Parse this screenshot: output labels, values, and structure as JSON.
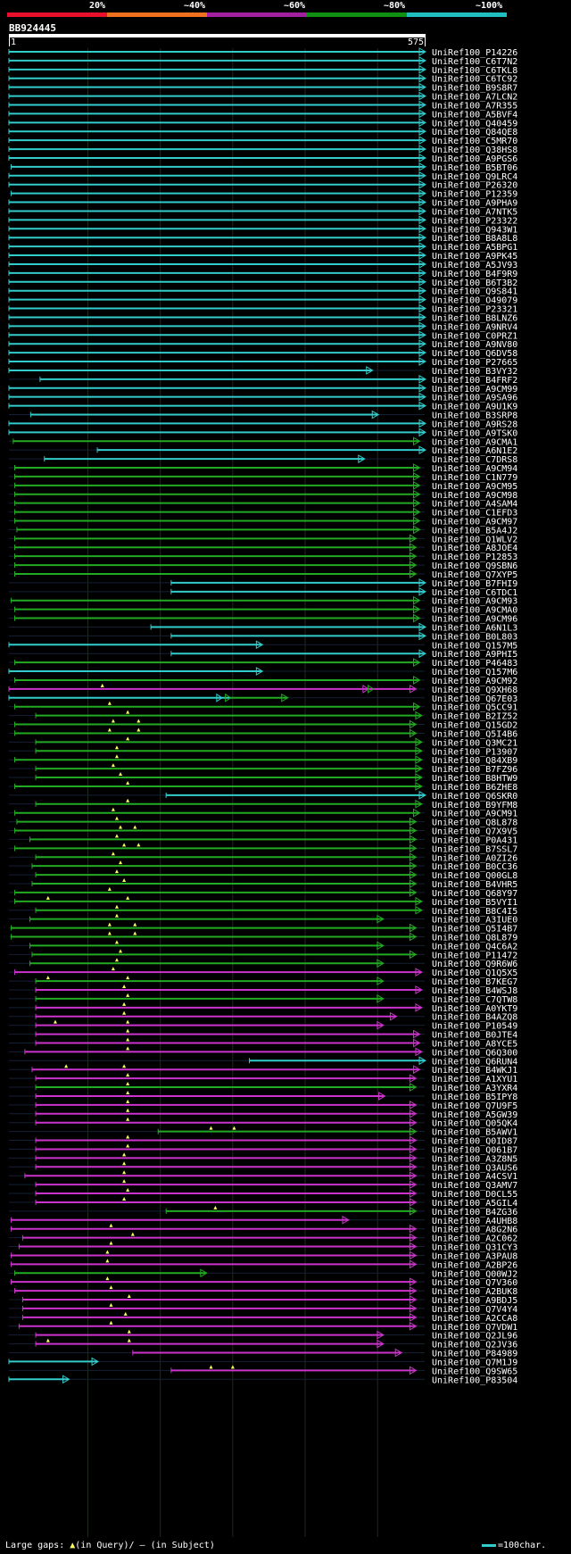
{
  "legend": {
    "labels": [
      "20%",
      "~40%",
      "~60%",
      "~80%",
      "~100%"
    ],
    "colors": [
      "#e8102a",
      "#f07020",
      "#a020a0",
      "#109010",
      "#20c0c0"
    ]
  },
  "query": {
    "id": "BB924445",
    "start": "1",
    "end": "575"
  },
  "colors": {
    "cyan": "#33cccc",
    "green": "#22aa22",
    "magenta": "#cc33cc"
  },
  "gap_marker_color": "#ffff66",
  "hits": [
    {
      "id": "UniRef100_P14226",
      "s": 1,
      "e": 575,
      "c": "cyan"
    },
    {
      "id": "UniRef100_C6T7N2",
      "s": 1,
      "e": 575,
      "c": "cyan"
    },
    {
      "id": "UniRef100_C6TKL8",
      "s": 1,
      "e": 575,
      "c": "cyan"
    },
    {
      "id": "UniRef100_C6TC92",
      "s": 1,
      "e": 575,
      "c": "cyan"
    },
    {
      "id": "UniRef100_B9S8R7",
      "s": 1,
      "e": 575,
      "c": "cyan"
    },
    {
      "id": "UniRef100_A7LCN2",
      "s": 1,
      "e": 575,
      "c": "cyan"
    },
    {
      "id": "UniRef100_A7R355",
      "s": 1,
      "e": 575,
      "c": "cyan"
    },
    {
      "id": "UniRef100_A5BVF4",
      "s": 1,
      "e": 575,
      "c": "cyan"
    },
    {
      "id": "UniRef100_Q40459",
      "s": 1,
      "e": 575,
      "c": "cyan"
    },
    {
      "id": "UniRef100_Q84QE8",
      "s": 1,
      "e": 575,
      "c": "cyan"
    },
    {
      "id": "UniRef100_C5MR70",
      "s": 1,
      "e": 575,
      "c": "cyan"
    },
    {
      "id": "UniRef100_Q38HS8",
      "s": 1,
      "e": 575,
      "c": "cyan"
    },
    {
      "id": "UniRef100_A9PGS6",
      "s": 1,
      "e": 575,
      "c": "cyan"
    },
    {
      "id": "UniRef100_B5BT06",
      "s": 4,
      "e": 575,
      "c": "cyan"
    },
    {
      "id": "UniRef100_Q9LRC4",
      "s": 1,
      "e": 575,
      "c": "cyan"
    },
    {
      "id": "UniRef100_P26320",
      "s": 1,
      "e": 575,
      "c": "cyan"
    },
    {
      "id": "UniRef100_P12359",
      "s": 4,
      "e": 575,
      "c": "cyan"
    },
    {
      "id": "UniRef100_A9PHA9",
      "s": 1,
      "e": 575,
      "c": "cyan"
    },
    {
      "id": "UniRef100_A7NTK5",
      "s": 1,
      "e": 575,
      "c": "cyan"
    },
    {
      "id": "UniRef100_P23322",
      "s": 1,
      "e": 575,
      "c": "cyan"
    },
    {
      "id": "UniRef100_Q943W1",
      "s": 1,
      "e": 575,
      "c": "cyan"
    },
    {
      "id": "UniRef100_B8A8L8",
      "s": 1,
      "e": 575,
      "c": "cyan"
    },
    {
      "id": "UniRef100_A5BPG1",
      "s": 1,
      "e": 575,
      "c": "cyan"
    },
    {
      "id": "UniRef100_A9PK45",
      "s": 1,
      "e": 575,
      "c": "cyan"
    },
    {
      "id": "UniRef100_A5JV93",
      "s": 1,
      "e": 575,
      "c": "cyan"
    },
    {
      "id": "UniRef100_B4F9R9",
      "s": 1,
      "e": 575,
      "c": "cyan"
    },
    {
      "id": "UniRef100_B6T3B2",
      "s": 1,
      "e": 575,
      "c": "cyan"
    },
    {
      "id": "UniRef100_Q9S841",
      "s": 1,
      "e": 575,
      "c": "cyan"
    },
    {
      "id": "UniRef100_O49079",
      "s": 1,
      "e": 575,
      "c": "cyan"
    },
    {
      "id": "UniRef100_P23321",
      "s": 1,
      "e": 575,
      "c": "cyan"
    },
    {
      "id": "UniRef100_B8LNZ6",
      "s": 1,
      "e": 575,
      "c": "cyan"
    },
    {
      "id": "UniRef100_A9NRV4",
      "s": 1,
      "e": 575,
      "c": "cyan"
    },
    {
      "id": "UniRef100_C0PRZ1",
      "s": 1,
      "e": 575,
      "c": "cyan"
    },
    {
      "id": "UniRef100_A9NV80",
      "s": 1,
      "e": 575,
      "c": "cyan"
    },
    {
      "id": "UniRef100_Q6DV58",
      "s": 1,
      "e": 575,
      "c": "cyan"
    },
    {
      "id": "UniRef100_P27665",
      "s": 1,
      "e": 575,
      "c": "cyan"
    },
    {
      "id": "UniRef100_B3VY32",
      "s": 1,
      "e": 502,
      "c": "cyan"
    },
    {
      "id": "UniRef100_B4FRF2",
      "s": 44,
      "e": 575,
      "c": "cyan"
    },
    {
      "id": "UniRef100_A9CM99",
      "s": 1,
      "e": 575,
      "c": "cyan"
    },
    {
      "id": "UniRef100_A9SA96",
      "s": 1,
      "e": 575,
      "c": "cyan"
    },
    {
      "id": "UniRef100_A9U1K9",
      "s": 1,
      "e": 575,
      "c": "cyan"
    },
    {
      "id": "UniRef100_B3SRP8",
      "s": 31,
      "e": 510,
      "c": "cyan"
    },
    {
      "id": "UniRef100_A9RS28",
      "s": 1,
      "e": 575,
      "c": "cyan"
    },
    {
      "id": "UniRef100_A9TSK0",
      "s": 1,
      "e": 575,
      "c": "cyan"
    },
    {
      "id": "UniRef100_A9CMA1",
      "s": 7,
      "e": 567,
      "c": "green"
    },
    {
      "id": "UniRef100_A6N1E2",
      "s": 123,
      "e": 575,
      "c": "cyan"
    },
    {
      "id": "UniRef100_C7DRS8",
      "s": 50,
      "e": 491,
      "c": "cyan"
    },
    {
      "id": "UniRef100_A9CM94",
      "s": 9,
      "e": 567,
      "c": "green"
    },
    {
      "id": "UniRef100_C1N779",
      "s": 9,
      "e": 567,
      "c": "green"
    },
    {
      "id": "UniRef100_A9CM95",
      "s": 9,
      "e": 567,
      "c": "green"
    },
    {
      "id": "UniRef100_A9CM98",
      "s": 9,
      "e": 567,
      "c": "green"
    },
    {
      "id": "UniRef100_A4SAM4",
      "s": 9,
      "e": 567,
      "c": "green"
    },
    {
      "id": "UniRef100_C1EFD3",
      "s": 9,
      "e": 567,
      "c": "green"
    },
    {
      "id": "UniRef100_A9CM97",
      "s": 9,
      "e": 567,
      "c": "green"
    },
    {
      "id": "UniRef100_B5A4J2",
      "s": 12,
      "e": 567,
      "c": "green"
    },
    {
      "id": "UniRef100_Q1WLV2",
      "s": 9,
      "e": 562,
      "c": "green"
    },
    {
      "id": "UniRef100_A8JOE4",
      "s": 9,
      "e": 562,
      "c": "green"
    },
    {
      "id": "UniRef100_P12853",
      "s": 9,
      "e": 562,
      "c": "green"
    },
    {
      "id": "UniRef100_Q9SBN6",
      "s": 9,
      "e": 562,
      "c": "green"
    },
    {
      "id": "UniRef100_Q7XYP5",
      "s": 9,
      "e": 562,
      "c": "green"
    },
    {
      "id": "UniRef100_B7FHI9",
      "s": 225,
      "e": 575,
      "c": "cyan"
    },
    {
      "id": "UniRef100_C6TDC1",
      "s": 225,
      "e": 575,
      "c": "cyan"
    },
    {
      "id": "UniRef100_A9CM93",
      "s": 4,
      "e": 567,
      "c": "green"
    },
    {
      "id": "UniRef100_A9CMA0",
      "s": 9,
      "e": 567,
      "c": "green"
    },
    {
      "id": "UniRef100_A9CM96",
      "s": 9,
      "e": 567,
      "c": "green"
    },
    {
      "id": "UniRef100_A6N1L3",
      "s": 197,
      "e": 575,
      "c": "cyan"
    },
    {
      "id": "UniRef100_B0L803",
      "s": 225,
      "e": 575,
      "c": "cyan"
    },
    {
      "id": "UniRef100_Q157M5",
      "s": 1,
      "e": 350,
      "c": "cyan"
    },
    {
      "id": "UniRef100_A9PHI5",
      "s": 225,
      "e": 575,
      "c": "cyan"
    },
    {
      "id": "UniRef100_P46483",
      "s": 9,
      "e": 567,
      "c": "green"
    },
    {
      "id": "UniRef100_Q157M6",
      "s": 1,
      "e": 350,
      "c": "cyan"
    },
    {
      "id": "UniRef100_A9CM92",
      "s": 9,
      "e": 567,
      "c": "green"
    },
    {
      "id": "UniRef100_Q9XH68",
      "s": 1,
      "e": 562,
      "c": "magenta",
      "gaps": [
        130
      ],
      "mid": [
        496,
        503
      ]
    },
    {
      "id": "UniRef100_Q67E03",
      "s": 1,
      "e": 385,
      "c": "cyan",
      "mid": [
        294,
        306
      ],
      "green_from": 306
    },
    {
      "id": "UniRef100_Q5CC91",
      "s": 9,
      "e": 567,
      "c": "green",
      "gaps": [
        140
      ]
    },
    {
      "id": "UniRef100_B2IZ52",
      "s": 38,
      "e": 570,
      "c": "green",
      "gaps": [
        165
      ]
    },
    {
      "id": "UniRef100_Q15GD2",
      "s": 9,
      "e": 562,
      "c": "green",
      "gaps": [
        145,
        180
      ]
    },
    {
      "id": "UniRef100_Q5I4B6",
      "s": 9,
      "e": 562,
      "c": "green",
      "gaps": [
        140,
        180
      ]
    },
    {
      "id": "UniRef100_Q3MC21",
      "s": 38,
      "e": 570,
      "c": "green",
      "gaps": [
        165
      ]
    },
    {
      "id": "UniRef100_P13907",
      "s": 38,
      "e": 570,
      "c": "green",
      "gaps": [
        150
      ]
    },
    {
      "id": "UniRef100_Q84XB9",
      "s": 9,
      "e": 570,
      "c": "green",
      "gaps": [
        150
      ]
    },
    {
      "id": "UniRef100_B7FZ96",
      "s": 38,
      "e": 570,
      "c": "green",
      "gaps": [
        145
      ]
    },
    {
      "id": "UniRef100_B8HTW9",
      "s": 38,
      "e": 570,
      "c": "green",
      "gaps": [
        155
      ]
    },
    {
      "id": "UniRef100_B6ZHE8",
      "s": 9,
      "e": 570,
      "c": "green",
      "gaps": [
        165
      ]
    },
    {
      "id": "UniRef100_Q6SKR0",
      "s": 218,
      "e": 575,
      "c": "cyan"
    },
    {
      "id": "UniRef100_B9YFM8",
      "s": 38,
      "e": 570,
      "c": "green",
      "gaps": [
        165
      ]
    },
    {
      "id": "UniRef100_A9CM91",
      "s": 9,
      "e": 567,
      "c": "green",
      "gaps": [
        145
      ]
    },
    {
      "id": "UniRef100_Q8L878",
      "s": 12,
      "e": 562,
      "c": "green",
      "gaps": [
        150
      ]
    },
    {
      "id": "UniRef100_Q7X9V5",
      "s": 9,
      "e": 562,
      "c": "green",
      "gaps": [
        155,
        175
      ]
    },
    {
      "id": "UniRef100_P0A431",
      "s": 30,
      "e": 562,
      "c": "green",
      "gaps": [
        150
      ]
    },
    {
      "id": "UniRef100_B7SSL7",
      "s": 9,
      "e": 562,
      "c": "green",
      "gaps": [
        160,
        180
      ]
    },
    {
      "id": "UniRef100_A0ZI26",
      "s": 38,
      "e": 562,
      "c": "green",
      "gaps": [
        145
      ]
    },
    {
      "id": "UniRef100_B0CC36",
      "s": 33,
      "e": 562,
      "c": "green",
      "gaps": [
        155
      ]
    },
    {
      "id": "UniRef100_Q00GL8",
      "s": 38,
      "e": 562,
      "c": "green",
      "gaps": [
        150
      ]
    },
    {
      "id": "UniRef100_B4VHR5",
      "s": 33,
      "e": 562,
      "c": "green",
      "gaps": [
        160
      ]
    },
    {
      "id": "UniRef100_Q68Y97",
      "s": 9,
      "e": 562,
      "c": "green",
      "gaps": [
        140
      ]
    },
    {
      "id": "UniRef100_B5VYI1",
      "s": 9,
      "e": 570,
      "c": "green",
      "gaps": [
        55,
        165
      ]
    },
    {
      "id": "UniRef100_B8C4I5",
      "s": 38,
      "e": 570,
      "c": "green",
      "gaps": [
        150
      ]
    },
    {
      "id": "UniRef100_A3IUE0",
      "s": 30,
      "e": 517,
      "c": "green",
      "gaps": [
        150
      ]
    },
    {
      "id": "UniRef100_Q5I4B7",
      "s": 4,
      "e": 562,
      "c": "green",
      "gaps": [
        140,
        175
      ]
    },
    {
      "id": "UniRef100_Q8L879",
      "s": 4,
      "e": 562,
      "c": "green",
      "gaps": [
        140,
        175
      ]
    },
    {
      "id": "UniRef100_Q4C6A2",
      "s": 30,
      "e": 517,
      "c": "green",
      "gaps": [
        150
      ]
    },
    {
      "id": "UniRef100_P11472",
      "s": 33,
      "e": 562,
      "c": "green",
      "gaps": [
        155
      ]
    },
    {
      "id": "UniRef100_Q9R6W6",
      "s": 30,
      "e": 517,
      "c": "green",
      "gaps": [
        150
      ]
    },
    {
      "id": "UniRef100_Q1Q5X5",
      "s": 9,
      "e": 570,
      "c": "magenta",
      "gaps": [
        145
      ]
    },
    {
      "id": "UniRef100_B7KEG7",
      "s": 38,
      "e": 517,
      "c": "green",
      "gaps": [
        55,
        165
      ]
    },
    {
      "id": "UniRef100_B4WSJ8",
      "s": 38,
      "e": 570,
      "c": "magenta",
      "gaps": [
        160
      ]
    },
    {
      "id": "UniRef100_C7QTW8",
      "s": 38,
      "e": 517,
      "c": "green",
      "gaps": [
        165
      ]
    },
    {
      "id": "UniRef100_A0YKT9",
      "s": 38,
      "e": 570,
      "c": "magenta",
      "gaps": [
        160
      ]
    },
    {
      "id": "UniRef100_B4AZQ8",
      "s": 38,
      "e": 535,
      "c": "magenta",
      "gaps": [
        160
      ]
    },
    {
      "id": "UniRef100_P10549",
      "s": 38,
      "e": 517,
      "c": "magenta",
      "gaps": [
        65,
        165
      ]
    },
    {
      "id": "UniRef100_B0JTE4",
      "s": 38,
      "e": 567,
      "c": "magenta",
      "gaps": [
        165
      ]
    },
    {
      "id": "UniRef100_A8YCE5",
      "s": 38,
      "e": 567,
      "c": "magenta",
      "gaps": [
        165
      ]
    },
    {
      "id": "UniRef100_Q6Q300",
      "s": 23,
      "e": 570,
      "c": "magenta",
      "gaps": [
        165
      ]
    },
    {
      "id": "UniRef100_Q6RUN4",
      "s": 333,
      "e": 575,
      "c": "cyan"
    },
    {
      "id": "UniRef100_B4WKJ1",
      "s": 33,
      "e": 567,
      "c": "magenta",
      "gaps": [
        80,
        160
      ]
    },
    {
      "id": "UniRef100_A1XYU1",
      "s": 38,
      "e": 562,
      "c": "magenta",
      "gaps": [
        165
      ]
    },
    {
      "id": "UniRef100_A3YXR4",
      "s": 38,
      "e": 562,
      "c": "green",
      "gaps": [
        165
      ]
    },
    {
      "id": "UniRef100_B5IPY8",
      "s": 38,
      "e": 519,
      "c": "magenta",
      "gaps": [
        165
      ]
    },
    {
      "id": "UniRef100_Q7U9F5",
      "s": 38,
      "e": 562,
      "c": "magenta",
      "gaps": [
        165
      ]
    },
    {
      "id": "UniRef100_A5GW39",
      "s": 38,
      "e": 562,
      "c": "magenta",
      "gaps": [
        165
      ]
    },
    {
      "id": "UniRef100_Q05QK4",
      "s": 38,
      "e": 562,
      "c": "magenta",
      "gaps": [
        165
      ]
    },
    {
      "id": "UniRef100_B5AWV1",
      "s": 207,
      "e": 562,
      "c": "green",
      "gaps": [
        280,
        312
      ]
    },
    {
      "id": "UniRef100_Q0ID87",
      "s": 38,
      "e": 562,
      "c": "magenta",
      "gaps": [
        165
      ]
    },
    {
      "id": "UniRef100_Q061B7",
      "s": 38,
      "e": 562,
      "c": "magenta",
      "gaps": [
        165
      ]
    },
    {
      "id": "UniRef100_A3Z8N5",
      "s": 38,
      "e": 562,
      "c": "magenta",
      "gaps": [
        160
      ]
    },
    {
      "id": "UniRef100_Q3AUS6",
      "s": 38,
      "e": 562,
      "c": "magenta",
      "gaps": [
        160
      ]
    },
    {
      "id": "UniRef100_A4CSV1",
      "s": 23,
      "e": 562,
      "c": "magenta",
      "gaps": [
        160
      ]
    },
    {
      "id": "UniRef100_Q3AMV7",
      "s": 38,
      "e": 562,
      "c": "magenta",
      "gaps": [
        160
      ]
    },
    {
      "id": "UniRef100_D0CL55",
      "s": 38,
      "e": 562,
      "c": "magenta",
      "gaps": [
        165
      ]
    },
    {
      "id": "UniRef100_A5GIL4",
      "s": 38,
      "e": 562,
      "c": "magenta",
      "gaps": [
        160
      ]
    },
    {
      "id": "UniRef100_B4ZG36",
      "s": 218,
      "e": 562,
      "c": "green",
      "gaps": [
        286
      ]
    },
    {
      "id": "UniRef100_A4UHB8",
      "s": 4,
      "e": 469,
      "c": "magenta"
    },
    {
      "id": "UniRef100_A8G2N6",
      "s": 4,
      "e": 562,
      "c": "magenta",
      "gaps": [
        142
      ]
    },
    {
      "id": "UniRef100_A2C062",
      "s": 20,
      "e": 562,
      "c": "magenta",
      "gaps": [
        172
      ]
    },
    {
      "id": "UniRef100_Q31CY3",
      "s": 15,
      "e": 562,
      "c": "magenta",
      "gaps": [
        142
      ]
    },
    {
      "id": "UniRef100_A3PAU8",
      "s": 4,
      "e": 562,
      "c": "magenta",
      "gaps": [
        137
      ]
    },
    {
      "id": "UniRef100_A2BP26",
      "s": 4,
      "e": 562,
      "c": "magenta",
      "gaps": [
        137
      ]
    },
    {
      "id": "UniRef100_Q00WJ2",
      "s": 9,
      "e": 273,
      "c": "green"
    },
    {
      "id": "UniRef100_Q7V360",
      "s": 4,
      "e": 562,
      "c": "magenta",
      "gaps": [
        137
      ]
    },
    {
      "id": "UniRef100_A2BUK8",
      "s": 9,
      "e": 562,
      "c": "magenta",
      "gaps": [
        142
      ]
    },
    {
      "id": "UniRef100_A9BDJ5",
      "s": 20,
      "e": 562,
      "c": "magenta",
      "gaps": [
        167
      ]
    },
    {
      "id": "UniRef100_Q7V4Y4",
      "s": 20,
      "e": 562,
      "c": "magenta",
      "gaps": [
        142
      ]
    },
    {
      "id": "UniRef100_A2CCA8",
      "s": 20,
      "e": 562,
      "c": "magenta",
      "gaps": [
        162
      ]
    },
    {
      "id": "UniRef100_Q7VDW1",
      "s": 15,
      "e": 562,
      "c": "magenta",
      "gaps": [
        142
      ]
    },
    {
      "id": "UniRef100_Q2JL96",
      "s": 38,
      "e": 517,
      "c": "magenta",
      "gaps": [
        167
      ]
    },
    {
      "id": "UniRef100_Q2JV36",
      "s": 38,
      "e": 517,
      "c": "magenta",
      "gaps": [
        55,
        167
      ]
    },
    {
      "id": "UniRef100_P84989",
      "s": 172,
      "e": 542,
      "c": "magenta"
    },
    {
      "id": "UniRef100_Q7M1J9",
      "s": 1,
      "e": 123,
      "c": "cyan"
    },
    {
      "id": "UniRef100_Q9SW65",
      "s": 225,
      "e": 562,
      "c": "magenta",
      "gaps": [
        280,
        310
      ]
    },
    {
      "id": "UniRef100_P83504",
      "s": 1,
      "e": 83,
      "c": "cyan"
    }
  ],
  "footer": {
    "prefix": "Large gaps: ",
    "tri": "▲",
    "query_text": "(in Query)/",
    "subject_text": "— (in Subject)",
    "scale_text": "=100char."
  }
}
